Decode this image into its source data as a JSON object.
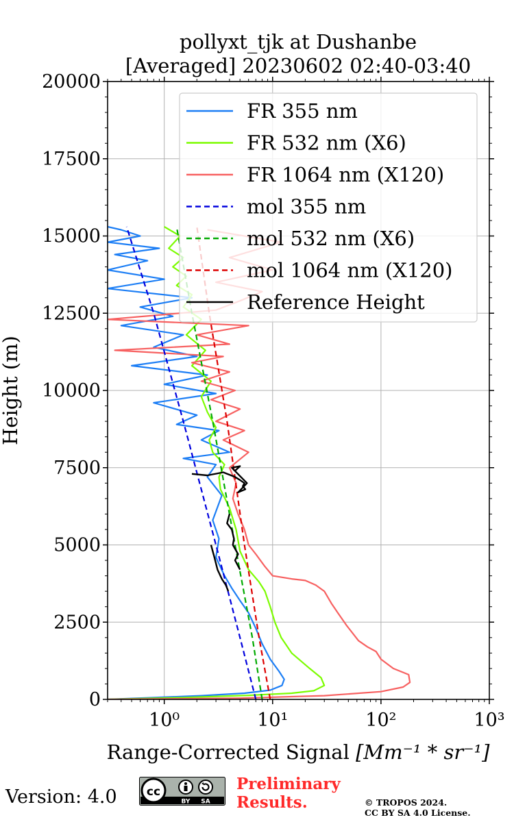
{
  "chart_data": {
    "type": "line",
    "title": "pollyxt_tjk at Dushanbe",
    "subtitle": "[Averaged] 20230602 02:40-03:40",
    "xlabel": "Range-Corrected Signal",
    "xlabel_unit": "[Mm⁻¹ * sr⁻¹]",
    "ylabel": "Height (m)",
    "xscale": "log",
    "xlim": [
      0.3,
      1000
    ],
    "ylim": [
      0,
      20000
    ],
    "grid": true,
    "legend_position": "top-right",
    "x_ticks": [
      "10⁰",
      "10¹",
      "10²",
      "10³"
    ],
    "y_ticks": [
      "0",
      "2500",
      "5000",
      "7500",
      "10000",
      "12500",
      "15000",
      "17500",
      "20000"
    ],
    "series": [
      {
        "name": "FR 355 nm",
        "color": "#1c7ef5",
        "style": "solid",
        "x": [
          0.3,
          0.7,
          2.2,
          5.5,
          9.5,
          12.2,
          12.8,
          11.5,
          9.5,
          8.0,
          7.0,
          6.0,
          5.0,
          4.2,
          3.6,
          3.0,
          3.2,
          2.8,
          3.4,
          2.5,
          3.0,
          1.5,
          4.0,
          2.2,
          3.2,
          1.3,
          2.0,
          0.8,
          3.0,
          1.0,
          2.5,
          0.5,
          2.0,
          0.8,
          1.5,
          0.4,
          1.2,
          0.6,
          1.8,
          0.3,
          1.0,
          0.3,
          0.7,
          0.35,
          0.9,
          0.3,
          0.6,
          0.4,
          0.3
        ],
        "y": [
          0,
          50,
          120,
          200,
          300,
          450,
          650,
          900,
          1300,
          1800,
          2300,
          2800,
          3200,
          3600,
          4000,
          4600,
          5200,
          5800,
          6600,
          7200,
          7600,
          7800,
          8000,
          8400,
          8700,
          8900,
          9200,
          9600,
          9900,
          10200,
          10500,
          10800,
          11100,
          11400,
          11800,
          12100,
          12400,
          12700,
          13000,
          13300,
          13600,
          13900,
          14200,
          14400,
          14600,
          14800,
          15000,
          15200,
          15300
        ]
      },
      {
        "name": "FR 532 nm (X6)",
        "color": "#7cfc00",
        "style": "solid",
        "x": [
          0.3,
          1.5,
          6.0,
          15.0,
          24.0,
          30.0,
          28.0,
          22.0,
          15.0,
          12.0,
          10.5,
          9.5,
          8.5,
          7.5,
          6.0,
          5.0,
          4.6,
          4.0,
          3.3,
          3.2,
          3.6,
          2.8,
          2.6,
          3.0,
          2.5,
          2.2,
          2.7,
          1.8,
          2.4,
          1.6,
          2.2,
          1.5,
          1.8,
          1.3,
          1.6,
          1.2,
          1.5,
          1.1,
          1.4,
          1.0
        ],
        "y": [
          0,
          60,
          130,
          200,
          280,
          450,
          700,
          1000,
          1500,
          2000,
          2500,
          3000,
          3500,
          3800,
          4200,
          4800,
          5500,
          6200,
          6800,
          7200,
          7600,
          8000,
          8400,
          8800,
          9300,
          9800,
          10300,
          10800,
          11300,
          11800,
          12300,
          12700,
          13100,
          13400,
          13700,
          14000,
          14300,
          14600,
          15000,
          15300
        ]
      },
      {
        "name": "FR 1064 nm (X120)",
        "color": "#f76060",
        "style": "solid",
        "x": [
          0.3,
          5.0,
          30.0,
          100.0,
          160.0,
          185.0,
          180.0,
          130.0,
          100.0,
          90.0,
          75.0,
          62.0,
          48.0,
          40.0,
          35.0,
          30.0,
          25.0,
          20.0,
          15.0,
          10.0,
          8.5,
          7.0,
          6.0,
          5.5,
          4.8,
          4.3,
          4.6,
          4.0,
          6.0,
          3.5,
          5.5,
          3.0,
          5.0,
          2.7,
          4.5,
          2.2,
          4.0,
          1.8,
          3.5,
          0.35,
          4.0,
          2.0,
          6.0,
          0.3,
          3.0,
          5.0,
          8.0,
          3.0,
          10.0,
          4.0,
          12.0,
          2.5
        ],
        "y": [
          0,
          40,
          120,
          250,
          400,
          550,
          800,
          1000,
          1300,
          1550,
          1700,
          1900,
          2400,
          2800,
          3100,
          3500,
          3700,
          3850,
          3900,
          4000,
          4300,
          4700,
          5000,
          5500,
          6000,
          6500,
          7000,
          7500,
          8000,
          8400,
          8700,
          9000,
          9400,
          9700,
          10000,
          10300,
          10600,
          10900,
          11100,
          11300,
          11500,
          11800,
          12100,
          12300,
          12600,
          12900,
          13200,
          13500,
          13900,
          14300,
          14800,
          15200
        ]
      },
      {
        "name": "mol 355 nm",
        "color": "#0000dd",
        "style": "dashed",
        "x": [
          7.0,
          5.0,
          3.0,
          1.5,
          0.8,
          0.45
        ],
        "y": [
          0,
          2000,
          5000,
          9000,
          12500,
          15300
        ]
      },
      {
        "name": "mol 532 nm (X6)",
        "color": "#00aa00",
        "style": "dashed",
        "x": [
          8.0,
          6.5,
          4.5,
          2.8,
          1.8,
          1.3
        ],
        "y": [
          0,
          2000,
          5000,
          9000,
          12500,
          15300
        ]
      },
      {
        "name": "mol 1064 nm (X120)",
        "color": "#dd0000",
        "style": "dashed",
        "x": [
          9.5,
          7.5,
          5.5,
          3.8,
          2.6,
          2.0
        ],
        "y": [
          0,
          2000,
          5000,
          9000,
          12500,
          15300
        ]
      },
      {
        "name": "Reference Height",
        "color": "#000000",
        "style": "solid",
        "segments": [
          {
            "x": [
              2.7,
              2.9,
              3.1,
              3.4,
              3.7,
              3.9
            ],
            "y": [
              5000,
              4600,
              4200,
              3900,
              3700,
              3500
            ]
          },
          {
            "x": [
              4.0,
              3.8,
              4.2,
              4.4,
              4.3,
              4.8,
              4.5,
              5.0
            ],
            "y": [
              6000,
              5700,
              5500,
              5200,
              5000,
              4700,
              4500,
              4200
            ]
          },
          {
            "x": [
              1.8,
              2.5,
              3.5,
              4.5,
              5.0,
              5.5,
              5.3,
              5.6,
              4.8,
              5.8,
              4.2,
              5.0,
              4.5
            ],
            "y": [
              7300,
              7250,
              7350,
              7200,
              7100,
              7000,
              6900,
              6800,
              6700,
              7000,
              7500,
              7550,
              7400
            ]
          }
        ]
      }
    ]
  },
  "footer": {
    "version": "Version: 4.0",
    "license_badge": "cc-by-sa-badge",
    "badge_by": "BY",
    "badge_sa": "SA",
    "preliminary_line1": "Preliminary",
    "preliminary_line2": "Results.",
    "copyright_line1": "© TROPOS 2024.",
    "copyright_line2": "CC BY SA 4.0 License."
  }
}
